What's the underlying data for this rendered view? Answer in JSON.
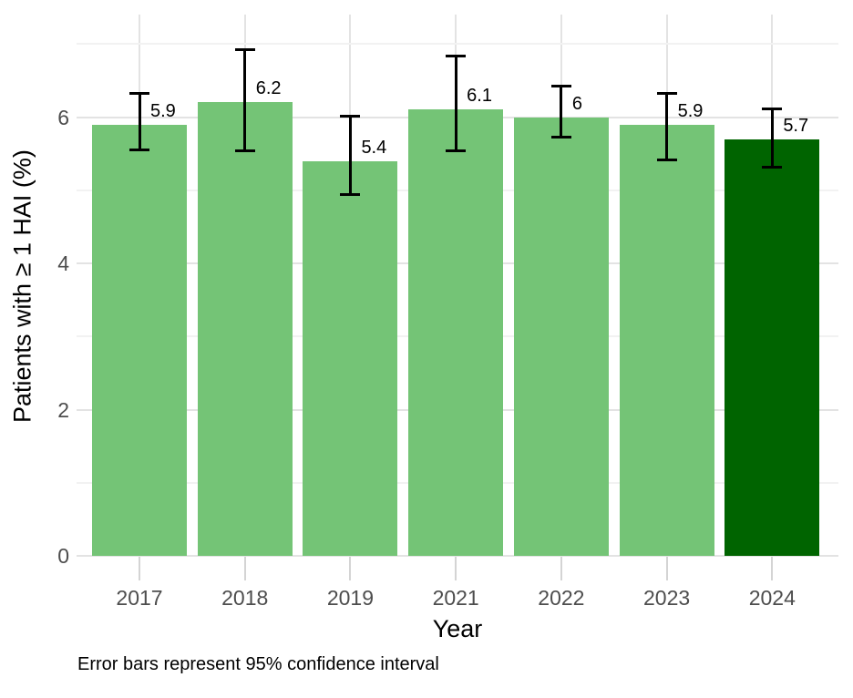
{
  "chart_data": {
    "type": "bar",
    "categories": [
      "2017",
      "2018",
      "2019",
      "2021",
      "2022",
      "2023",
      "2024"
    ],
    "values": [
      5.9,
      6.2,
      5.4,
      6.1,
      6.0,
      5.9,
      5.7
    ],
    "value_labels": [
      "5.9",
      "6.2",
      "5.4",
      "6.1",
      "6",
      "5.9",
      "5.7"
    ],
    "ci_low": [
      5.54,
      5.53,
      4.93,
      5.53,
      5.72,
      5.41,
      5.31
    ],
    "ci_high": [
      6.33,
      6.93,
      6.02,
      6.84,
      6.43,
      6.33,
      6.12
    ],
    "title": "",
    "xlabel": "Year",
    "ylabel": "Patients with ≥ 1 HAI (%)",
    "caption": "Error bars represent 95% confidence interval",
    "ylim": [
      0,
      7.4
    ],
    "yticks_major": [
      0,
      2,
      4,
      6
    ],
    "yticks_minor": [
      1,
      3,
      5,
      7
    ],
    "grid": "on",
    "legend": "none",
    "highlight_category": "2024",
    "highlight_index": 6,
    "colors": {
      "bar": "#74c476",
      "bar_highlight": "#006400",
      "grid_major": "#e3e3e3",
      "grid_minor": "#f2f2f2",
      "axis_tick": "#d4d4d4",
      "axis_text": "#4d4d4d",
      "text": "#000000",
      "error_bar": "#000000",
      "background": "#ffffff"
    }
  }
}
